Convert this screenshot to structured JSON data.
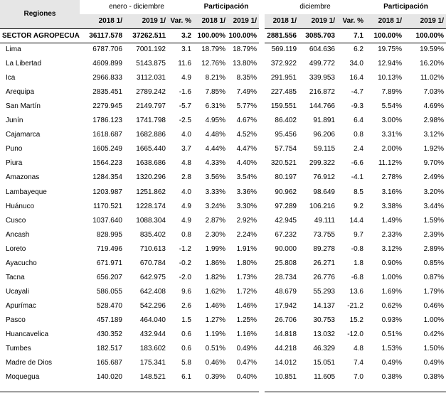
{
  "header": {
    "regions": "Regiones",
    "left_period": "enero - diciembre",
    "left_share": "Participación",
    "right_period": "diciembre",
    "right_share": "Participación",
    "columns": [
      "2018 1/",
      "2019 1/",
      "Var. %",
      "2018 1/",
      "2019 1/",
      "2018 1/",
      "2019 1/",
      "Var. %",
      "2018 1/",
      "2019 1/"
    ]
  },
  "table": {
    "rows": [
      [
        "SECTOR AGROPECUARIO",
        "36117.578",
        "37262.511",
        "3.2",
        "100.00%",
        "100.00%",
        "2881.556",
        "3085.703",
        "7.1",
        "100.00%",
        "100.00%"
      ],
      [
        "Lima",
        "6787.706",
        "7001.192",
        "3.1",
        "18.79%",
        "18.79%",
        "569.119",
        "604.636",
        "6.2",
        "19.75%",
        "19.59%"
      ],
      [
        "La Libertad",
        "4609.899",
        "5143.875",
        "11.6",
        "12.76%",
        "13.80%",
        "372.922",
        "499.772",
        "34.0",
        "12.94%",
        "16.20%"
      ],
      [
        "Ica",
        "2966.833",
        "3112.031",
        "4.9",
        "8.21%",
        "8.35%",
        "291.951",
        "339.953",
        "16.4",
        "10.13%",
        "11.02%"
      ],
      [
        "Arequipa",
        "2835.451",
        "2789.242",
        "-1.6",
        "7.85%",
        "7.49%",
        "227.485",
        "216.872",
        "-4.7",
        "7.89%",
        "7.03%"
      ],
      [
        "San Martín",
        "2279.945",
        "2149.797",
        "-5.7",
        "6.31%",
        "5.77%",
        "159.551",
        "144.766",
        "-9.3",
        "5.54%",
        "4.69%"
      ],
      [
        "Junín",
        "1786.123",
        "1741.798",
        "-2.5",
        "4.95%",
        "4.67%",
        "86.402",
        "91.891",
        "6.4",
        "3.00%",
        "2.98%"
      ],
      [
        "Cajamarca",
        "1618.687",
        "1682.886",
        "4.0",
        "4.48%",
        "4.52%",
        "95.456",
        "96.206",
        "0.8",
        "3.31%",
        "3.12%"
      ],
      [
        "Puno",
        "1605.249",
        "1665.440",
        "3.7",
        "4.44%",
        "4.47%",
        "57.754",
        "59.115",
        "2.4",
        "2.00%",
        "1.92%"
      ],
      [
        "Piura",
        "1564.223",
        "1638.686",
        "4.8",
        "4.33%",
        "4.40%",
        "320.521",
        "299.322",
        "-6.6",
        "11.12%",
        "9.70%"
      ],
      [
        "Amazonas",
        "1284.354",
        "1320.296",
        "2.8",
        "3.56%",
        "3.54%",
        "80.197",
        "76.912",
        "-4.1",
        "2.78%",
        "2.49%"
      ],
      [
        "Lambayeque",
        "1203.987",
        "1251.862",
        "4.0",
        "3.33%",
        "3.36%",
        "90.962",
        "98.649",
        "8.5",
        "3.16%",
        "3.20%"
      ],
      [
        "Huánuco",
        "1170.521",
        "1228.174",
        "4.9",
        "3.24%",
        "3.30%",
        "97.289",
        "106.216",
        "9.2",
        "3.38%",
        "3.44%"
      ],
      [
        "Cusco",
        "1037.640",
        "1088.304",
        "4.9",
        "2.87%",
        "2.92%",
        "42.945",
        "49.111",
        "14.4",
        "1.49%",
        "1.59%"
      ],
      [
        "Ancash",
        "828.995",
        "835.402",
        "0.8",
        "2.30%",
        "2.24%",
        "67.232",
        "73.755",
        "9.7",
        "2.33%",
        "2.39%"
      ],
      [
        "Loreto",
        "719.496",
        "710.613",
        "-1.2",
        "1.99%",
        "1.91%",
        "90.000",
        "89.278",
        "-0.8",
        "3.12%",
        "2.89%"
      ],
      [
        "Ayacucho",
        "671.971",
        "670.784",
        "-0.2",
        "1.86%",
        "1.80%",
        "25.808",
        "26.271",
        "1.8",
        "0.90%",
        "0.85%"
      ],
      [
        "Tacna",
        "656.207",
        "642.975",
        "-2.0",
        "1.82%",
        "1.73%",
        "28.734",
        "26.776",
        "-6.8",
        "1.00%",
        "0.87%"
      ],
      [
        "Ucayali",
        "586.055",
        "642.408",
        "9.6",
        "1.62%",
        "1.72%",
        "48.679",
        "55.293",
        "13.6",
        "1.69%",
        "1.79%"
      ],
      [
        "Apurímac",
        "528.470",
        "542.296",
        "2.6",
        "1.46%",
        "1.46%",
        "17.942",
        "14.137",
        "-21.2",
        "0.62%",
        "0.46%"
      ],
      [
        "Pasco",
        "457.189",
        "464.040",
        "1.5",
        "1.27%",
        "1.25%",
        "26.706",
        "30.753",
        "15.2",
        "0.93%",
        "1.00%"
      ],
      [
        "Huancavelica",
        "430.352",
        "432.944",
        "0.6",
        "1.19%",
        "1.16%",
        "14.818",
        "13.032",
        "-12.0",
        "0.51%",
        "0.42%"
      ],
      [
        "Tumbes",
        "182.517",
        "183.602",
        "0.6",
        "0.51%",
        "0.49%",
        "44.218",
        "46.329",
        "4.8",
        "1.53%",
        "1.50%"
      ],
      [
        "Madre de Dios",
        "165.687",
        "175.341",
        "5.8",
        "0.46%",
        "0.47%",
        "14.012",
        "15.051",
        "7.4",
        "0.49%",
        "0.49%"
      ],
      [
        "Moquegua",
        "140.020",
        "148.521",
        "6.1",
        "0.39%",
        "0.40%",
        "10.851",
        "11.605",
        "7.0",
        "0.38%",
        "0.38%"
      ]
    ]
  }
}
